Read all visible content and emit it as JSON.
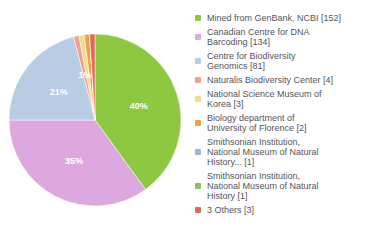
{
  "chart_data": {
    "type": "pie",
    "categories": [
      "Mined from GenBank, NCBI [152]",
      "Canadian Centre for DNA\nBarcoding [134]",
      "Centre for Biodiversity\nGenomics [81]",
      "Naturalis Biodiversity Center [4]",
      "National Science Museum of\nKorea [3]",
      "Biology department of\nUniversity of Florence [2]",
      "Smithsonian Institution,\nNational Museum of Natural\nHistory... [1]",
      "Smithsonian Institution,\nNational Museum of Natural\nHistory [1]",
      "3 Others [3]"
    ],
    "values": [
      40,
      35,
      21,
      1,
      1,
      1,
      0,
      0,
      1
    ],
    "value_labels": [
      "40%",
      "35%",
      "21%",
      "1%",
      null,
      null,
      null,
      null,
      null
    ],
    "colors": [
      "#8dc840",
      "#dda8dd",
      "#b8cce4",
      "#f4a090",
      "#e8e090",
      "#f4a040",
      "#9ab8d8",
      "#90c060",
      "#e06858"
    ],
    "data_labels": true,
    "legend": "right"
  }
}
